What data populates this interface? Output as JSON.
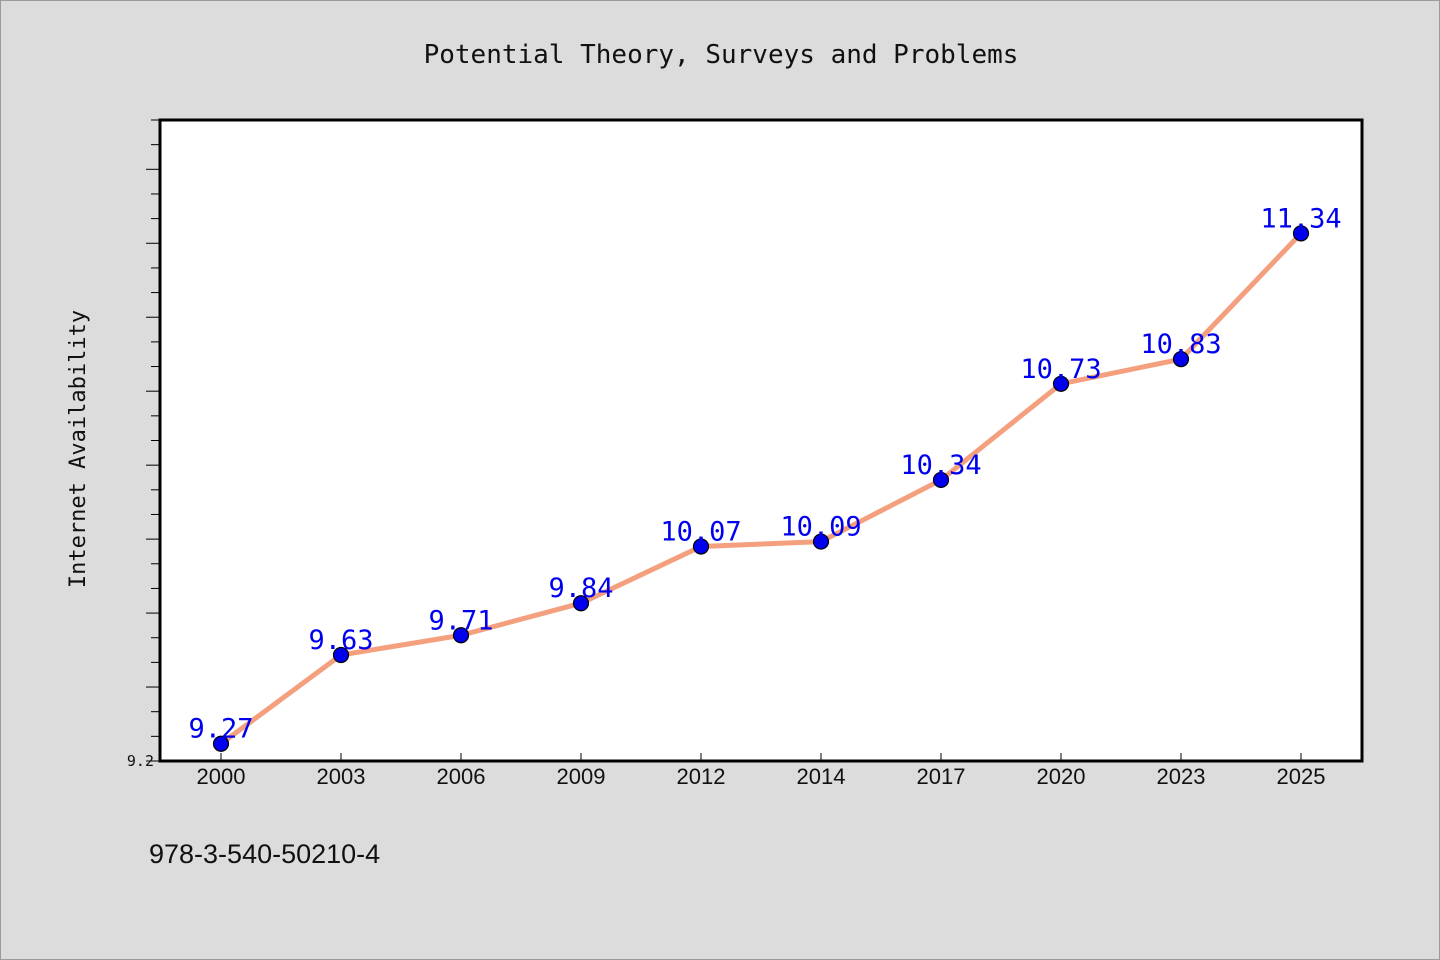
{
  "chart_data": {
    "type": "line",
    "title": "Potential Theory, Surveys and Problems",
    "xlabel": "",
    "ylabel": "Internet Availability",
    "categories": [
      "2000",
      "2003",
      "2006",
      "2009",
      "2012",
      "2014",
      "2017",
      "2020",
      "2023",
      "2025"
    ],
    "series": [
      {
        "values": [
          9.27,
          9.63,
          9.71,
          9.84,
          10.07,
          10.09,
          10.34,
          10.73,
          10.83,
          11.34
        ]
      }
    ],
    "data_labels": [
      "9.27",
      "9.63",
      "9.71",
      "9.84",
      "10.07",
      "10.09",
      "10.34",
      "10.73",
      "10.83",
      "11.34"
    ],
    "ylim": [
      9.2,
      11.8
    ],
    "y_tick_labels": [
      "9.2"
    ],
    "grid": false,
    "legend": "none",
    "colors": {
      "line": "#f4a07e",
      "marker": "#0000ee",
      "label": "#0000ee",
      "background": "#dcdcdc",
      "plot_background": "#ffffff"
    }
  },
  "footnote": "978-3-540-50210-4"
}
